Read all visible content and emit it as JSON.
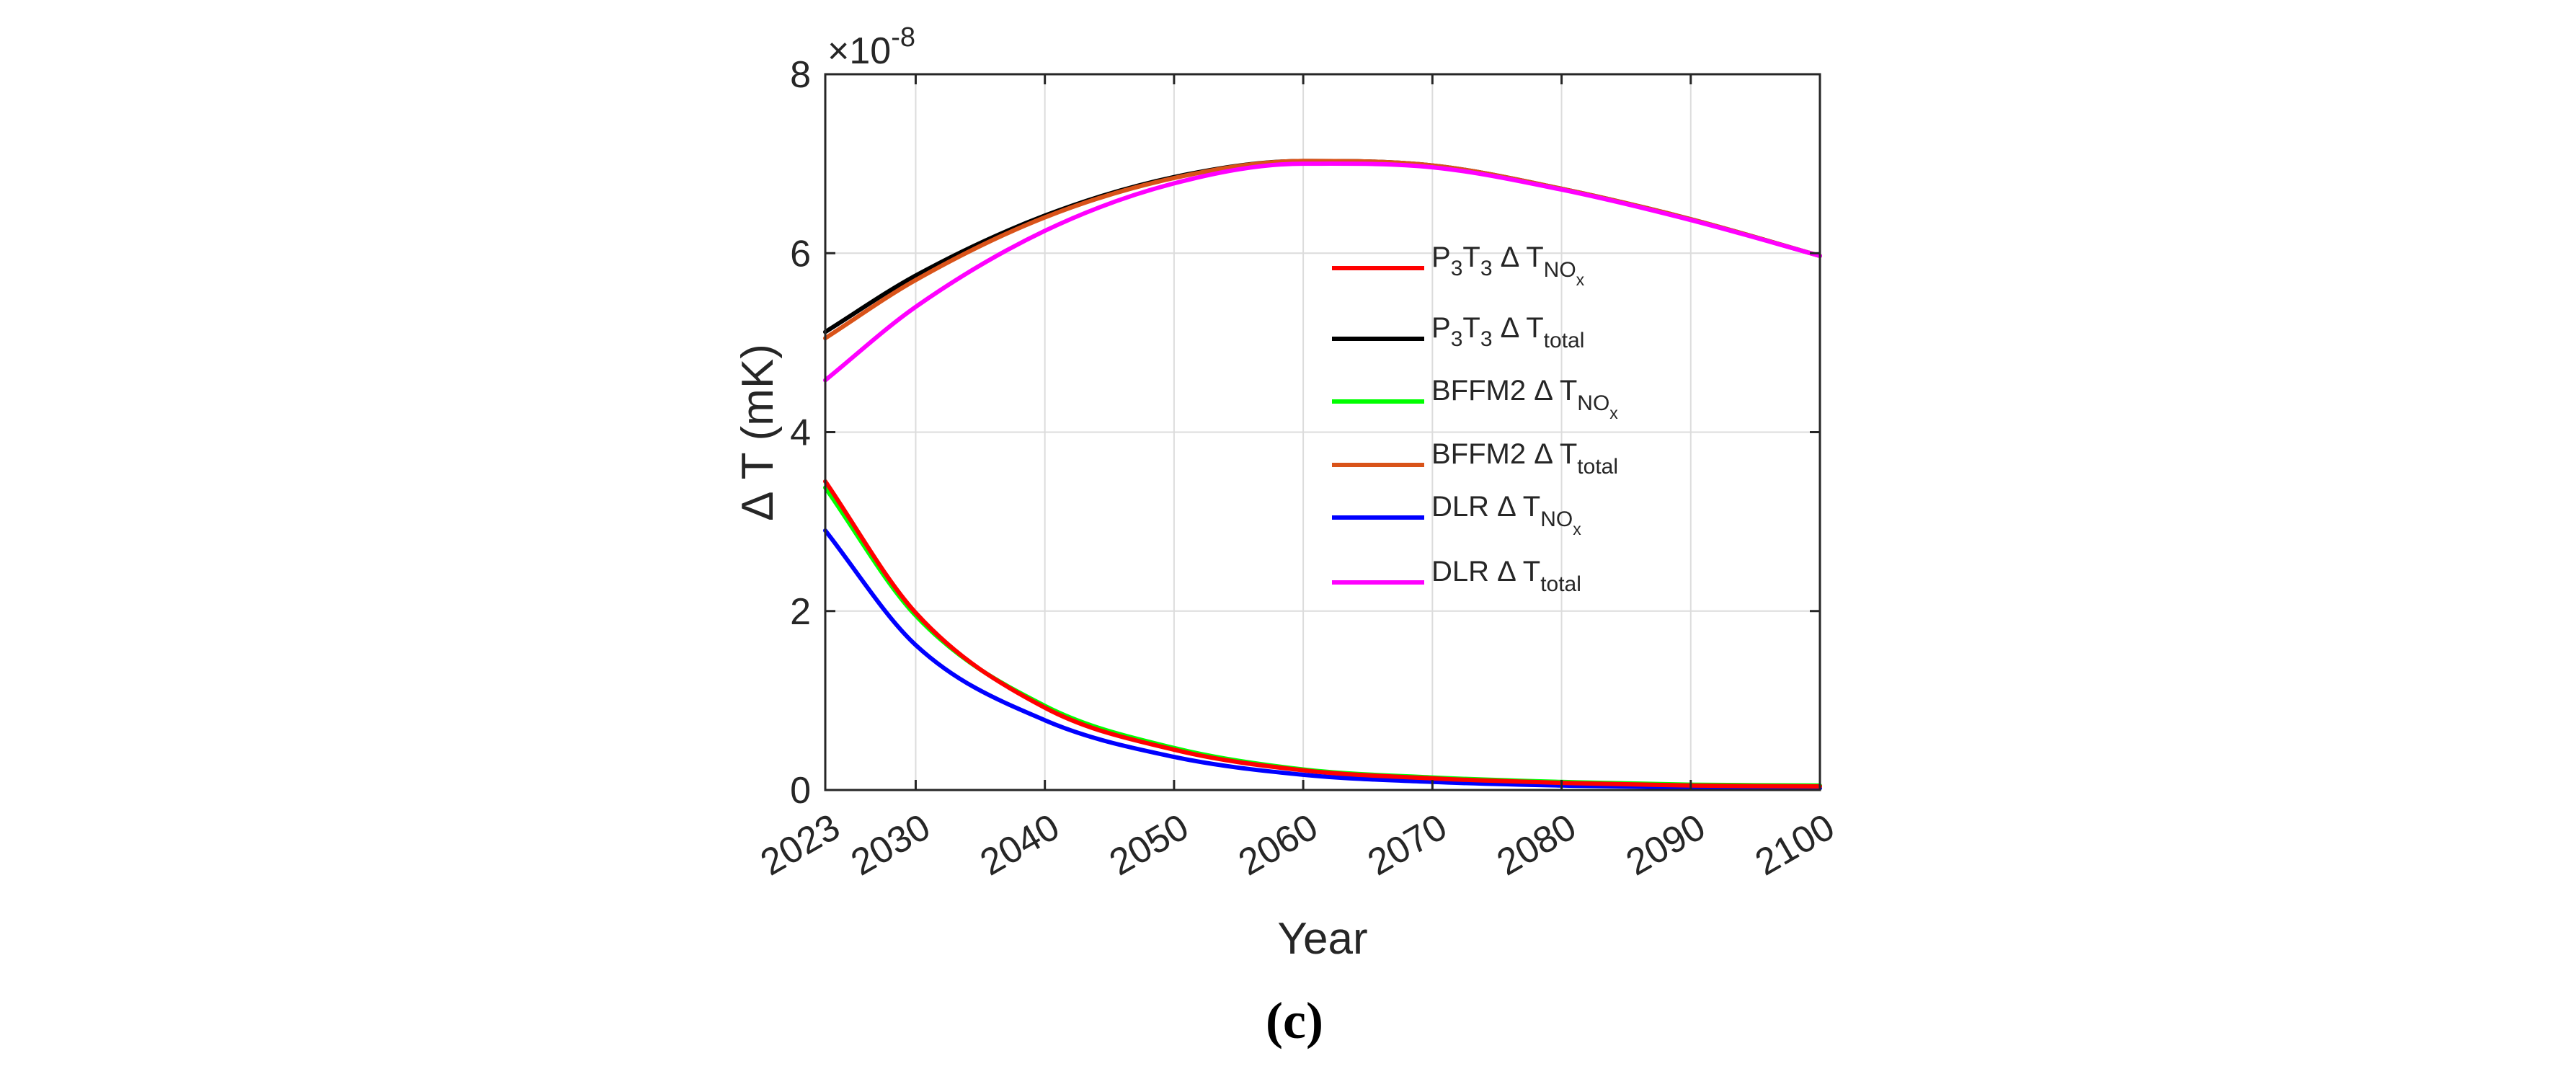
{
  "chart_data": {
    "type": "line",
    "title": "",
    "xlabel": "Year",
    "ylabel_prefix": "Δ",
    "ylabel": "T (mK)",
    "xlim": [
      2023,
      2100
    ],
    "ylim": [
      0,
      8
    ],
    "y_exponent_times": "×10",
    "y_exponent_power": "-8",
    "grid": true,
    "legend_placement": "inside-upper-right",
    "x_ticks": [
      2023,
      2030,
      2040,
      2050,
      2060,
      2070,
      2080,
      2090,
      2100
    ],
    "x_tick_labels": [
      "2023",
      "2030",
      "2040",
      "2050",
      "2060",
      "2070",
      "2080",
      "2090",
      "2100"
    ],
    "y_ticks": [
      0,
      2,
      4,
      6,
      8
    ],
    "y_tick_labels": [
      "0",
      "2",
      "4",
      "6",
      "8"
    ],
    "x": [
      2023,
      2030,
      2040,
      2050,
      2060,
      2070,
      2080,
      2090,
      2100
    ],
    "series": [
      {
        "name": "P3T3 Δ T_NOx",
        "legend": {
          "pre": "P",
          "pre_sub": "3",
          "mid": "T",
          "mid_sub": "3",
          "delta": "Δ T",
          "sub": "NO",
          "subsub": "x"
        },
        "color": "#ff0000",
        "values": [
          3.45,
          1.98,
          0.92,
          0.45,
          0.22,
          0.13,
          0.08,
          0.05,
          0.04
        ]
      },
      {
        "name": "P3T3 Δ T_total",
        "legend": {
          "pre": "P",
          "pre_sub": "3",
          "mid": "T",
          "mid_sub": "3",
          "delta": "Δ T",
          "sub": "total",
          "subsub": ""
        },
        "color": "#000000",
        "values": [
          5.12,
          5.75,
          6.42,
          6.85,
          7.03,
          6.98,
          6.72,
          6.38,
          5.97
        ]
      },
      {
        "name": "BFFM2 Δ T_NOx",
        "legend": {
          "pre": "BFFM2",
          "pre_sub": "",
          "mid": "",
          "mid_sub": "",
          "delta": "Δ T",
          "sub": "NO",
          "subsub": "x"
        },
        "color": "#00ff00",
        "values": [
          3.38,
          1.95,
          0.94,
          0.47,
          0.23,
          0.14,
          0.09,
          0.06,
          0.05
        ]
      },
      {
        "name": "BFFM2 Δ T_total",
        "legend": {
          "pre": "BFFM2",
          "pre_sub": "",
          "mid": "",
          "mid_sub": "",
          "delta": "Δ T",
          "sub": "total",
          "subsub": ""
        },
        "color": "#d95319",
        "values": [
          5.05,
          5.7,
          6.4,
          6.84,
          7.03,
          6.98,
          6.72,
          6.38,
          5.97
        ]
      },
      {
        "name": "DLR Δ T_NOx",
        "legend": {
          "pre": "DLR",
          "pre_sub": "",
          "mid": "",
          "mid_sub": "",
          "delta": "Δ T",
          "sub": "NO",
          "subsub": "x"
        },
        "color": "#0000ff",
        "values": [
          2.9,
          1.62,
          0.78,
          0.37,
          0.17,
          0.09,
          0.05,
          0.03,
          0.02
        ]
      },
      {
        "name": "DLR Δ T_total",
        "legend": {
          "pre": "DLR",
          "pre_sub": "",
          "mid": "",
          "mid_sub": "",
          "delta": "Δ T",
          "sub": "total",
          "subsub": ""
        },
        "color": "#ff00ff",
        "values": [
          4.58,
          5.4,
          6.25,
          6.78,
          7.0,
          6.96,
          6.71,
          6.37,
          5.97
        ]
      }
    ]
  },
  "caption": "(c)"
}
